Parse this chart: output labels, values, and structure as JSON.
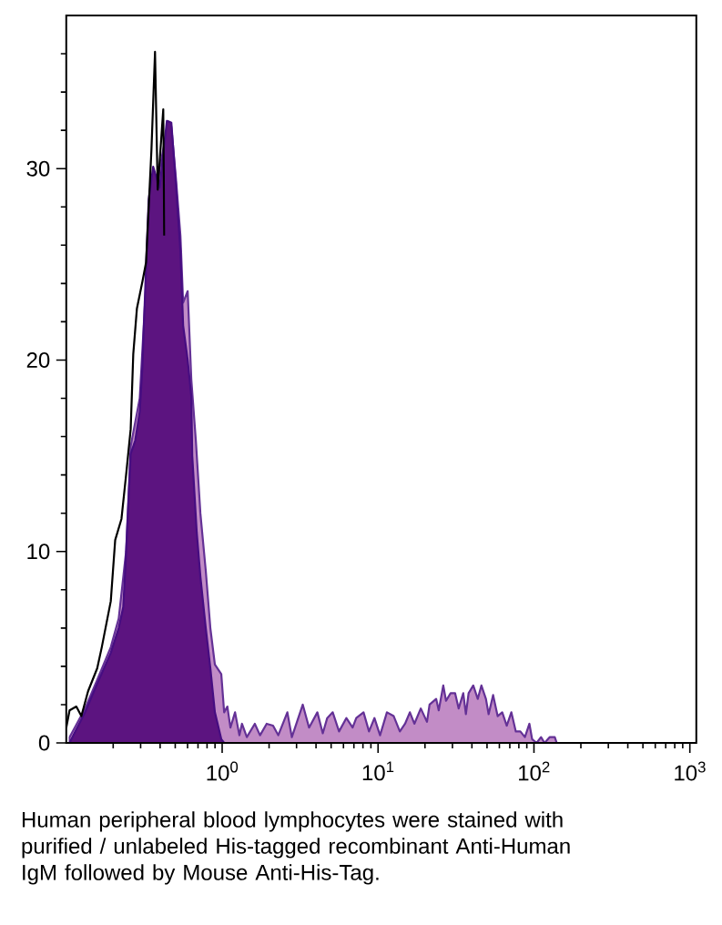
{
  "chart_data": {
    "type": "area",
    "log": "x",
    "xlim": [
      0.1,
      1100
    ],
    "ylim": [
      0,
      38
    ],
    "xticks": [
      {
        "value": 0.2,
        "label": null
      },
      {
        "value": 0.3,
        "label": null
      },
      {
        "value": 0.4,
        "label": null
      },
      {
        "value": 0.5,
        "label": null
      },
      {
        "value": 0.6,
        "label": null
      },
      {
        "value": 0.7,
        "label": null
      },
      {
        "value": 0.8,
        "label": null
      },
      {
        "value": 0.9,
        "label": null
      },
      {
        "value": 1,
        "label": "10$^{0}$"
      },
      {
        "value": 2,
        "label": null
      },
      {
        "value": 3,
        "label": null
      },
      {
        "value": 4,
        "label": null
      },
      {
        "value": 5,
        "label": null
      },
      {
        "value": 6,
        "label": null
      },
      {
        "value": 7,
        "label": null
      },
      {
        "value": 8,
        "label": null
      },
      {
        "value": 9,
        "label": null
      },
      {
        "value": 10,
        "label": "10$^{1}$"
      },
      {
        "value": 20,
        "label": null
      },
      {
        "value": 30,
        "label": null
      },
      {
        "value": 40,
        "label": null
      },
      {
        "value": 50,
        "label": null
      },
      {
        "value": 60,
        "label": null
      },
      {
        "value": 70,
        "label": null
      },
      {
        "value": 80,
        "label": null
      },
      {
        "value": 90,
        "label": null
      },
      {
        "value": 100,
        "label": "10$^{2}$"
      },
      {
        "value": 200,
        "label": null
      },
      {
        "value": 300,
        "label": null
      },
      {
        "value": 400,
        "label": null
      },
      {
        "value": 500,
        "label": null
      },
      {
        "value": 600,
        "label": null
      },
      {
        "value": 700,
        "label": null
      },
      {
        "value": 800,
        "label": null
      },
      {
        "value": 900,
        "label": null
      },
      {
        "value": 1000,
        "label": "10$^{3}$"
      }
    ],
    "yticks": [
      0,
      {
        "value": 2,
        "label": null
      },
      {
        "value": 4,
        "label": null
      },
      {
        "value": 6,
        "label": null
      },
      {
        "value": 8,
        "label": null
      },
      10,
      {
        "value": 12,
        "label": null
      },
      {
        "value": 14,
        "label": null
      },
      {
        "value": 16,
        "label": null
      },
      {
        "value": 18,
        "label": null
      },
      20,
      {
        "value": 22,
        "label": null
      },
      {
        "value": 24,
        "label": null
      },
      {
        "value": 26,
        "label": null
      },
      {
        "value": 28,
        "label": null
      },
      30,
      {
        "value": 32,
        "label": null
      },
      {
        "value": 34,
        "label": null
      },
      {
        "value": 36,
        "label": null
      }
    ],
    "series": [
      {
        "color": "#c28cc6",
        "x": [
          0.105,
          0.132,
          0.158,
          0.193,
          0.217,
          0.242,
          0.259,
          0.296,
          0.325,
          0.397,
          0.442,
          0.472,
          0.505,
          0.54,
          0.562,
          0.601,
          0.634,
          0.678,
          0.725,
          0.785,
          0.84,
          0.898,
          0.987,
          1.03,
          1.08,
          1.13,
          1.21,
          1.29,
          1.34,
          1.44,
          1.62,
          1.75,
          1.93,
          2.12,
          2.29,
          2.62,
          2.8,
          3.29,
          3.61,
          4.08,
          4.42,
          4.72,
          5.12,
          5.62,
          6.26,
          6.87,
          7.25,
          8.07,
          8.75,
          9.48,
          10.3,
          11.4,
          12.6,
          13.8,
          14.9,
          16.0,
          17.1,
          18.8,
          20.6,
          21.4,
          23.6,
          24.5,
          26.2,
          27.3,
          29.2,
          31.2,
          32.9,
          35.2,
          36.6,
          38.1,
          40.8,
          43.6,
          46.0,
          49.2,
          51.2,
          54.7,
          58.5,
          62.6,
          66.9,
          71.6,
          76.5,
          81.8,
          87.5,
          93.5,
          97.3,
          104,
          111,
          117,
          126,
          136,
          140
        ],
        "values": [
          0.3,
          1.8,
          3.3,
          5.0,
          6.5,
          10.0,
          15.5,
          18.0,
          24.0,
          30.0,
          32.0,
          32.2,
          29.5,
          26.5,
          23.0,
          23.6,
          19.0,
          15.8,
          12.0,
          9.0,
          6.0,
          4.1,
          3.6,
          1.6,
          1.9,
          0.8,
          1.6,
          0.4,
          1.0,
          0.3,
          1.0,
          0.4,
          1.0,
          0.9,
          0.4,
          1.6,
          0.3,
          2.0,
          0.8,
          1.6,
          0.5,
          1.3,
          1.6,
          0.6,
          1.3,
          0.8,
          1.3,
          1.6,
          0.6,
          1.3,
          0.4,
          1.6,
          1.4,
          0.6,
          1.0,
          1.6,
          1.0,
          1.8,
          1.1,
          2.0,
          2.3,
          1.7,
          3.0,
          2.2,
          2.6,
          2.6,
          1.8,
          2.6,
          1.5,
          2.6,
          3.0,
          2.3,
          3.0,
          2.3,
          1.5,
          2.5,
          1.4,
          1.6,
          0.9,
          1.6,
          0.6,
          0.6,
          0.3,
          1.0,
          0.2,
          0,
          0.3,
          0,
          0.3,
          0.3,
          0
        ]
      },
      {
        "color": "#5c1480",
        "x": [
          0.105,
          0.108,
          0.132,
          0.158,
          0.193,
          0.217,
          0.232,
          0.242,
          0.259,
          0.277,
          0.296,
          0.308,
          0.325,
          0.338,
          0.361,
          0.397,
          0.442,
          0.472,
          0.485,
          0.505,
          0.54,
          0.562,
          0.601,
          0.634,
          0.643,
          0.687,
          0.725,
          0.785,
          0.84,
          0.898,
          0.987,
          1.03
        ],
        "values": [
          0,
          0.2,
          1.6,
          3.1,
          4.7,
          6.0,
          7.1,
          9.9,
          15.1,
          15.8,
          17.3,
          19.7,
          24.9,
          28.4,
          30.1,
          29.0,
          32.5,
          32.4,
          31.1,
          29.2,
          25.7,
          21.8,
          20.0,
          18.1,
          15.0,
          11.0,
          8.7,
          6.0,
          3.9,
          1.6,
          0.2,
          0
        ]
      },
      {
        "type": "line",
        "color": "#000000",
        "x": [
          0.1,
          0.105,
          0.116,
          0.125,
          0.138,
          0.158,
          0.169,
          0.193,
          0.206,
          0.226,
          0.242,
          0.259,
          0.269,
          0.284,
          0.308,
          0.325,
          0.352,
          0.371,
          0.386,
          0.419,
          0.425
        ],
        "values": [
          0.8,
          1.7,
          1.9,
          1.4,
          2.7,
          3.9,
          5.0,
          7.4,
          10.6,
          11.7,
          14.0,
          16.4,
          20.3,
          22.7,
          24.1,
          25.1,
          31.0,
          36.1,
          28.9,
          33.1,
          26.5
        ]
      }
    ],
    "annotations": [
      "Human peripheral blood lymphocytes were stained with purified / unlabeled His-tagged recombinant Anti-Human IgM followed by Mouse Anti-His-Tag."
    ]
  }
}
